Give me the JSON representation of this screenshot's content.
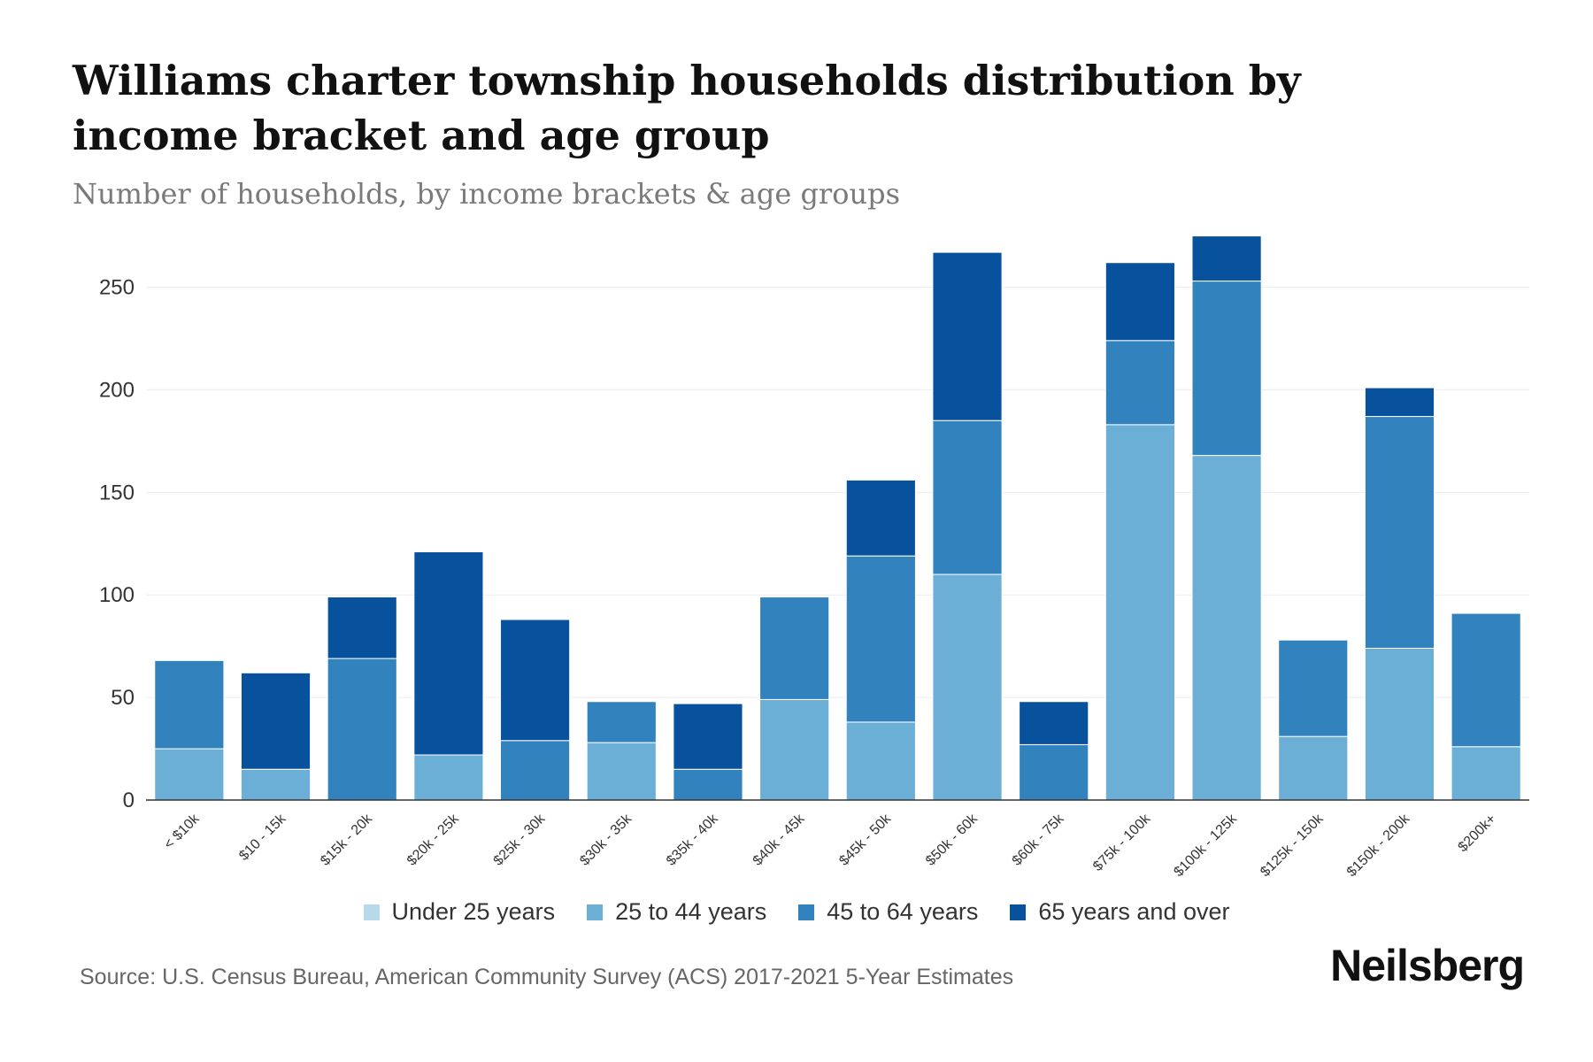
{
  "header": {
    "title": "Williams charter township households distribution by income bracket and age group",
    "subtitle": "Number of households, by income brackets & age groups"
  },
  "footer": {
    "source": "Source: U.S. Census Bureau, American Community Survey (ACS) 2017-2021 5-Year Estimates",
    "brand": "Neilsberg"
  },
  "chart_data": {
    "type": "bar",
    "stacked": true,
    "title": "Williams charter township households distribution by income bracket and age group",
    "subtitle": "Number of households, by income brackets & age groups",
    "xlabel": "",
    "ylabel": "",
    "ylim": [
      0,
      280
    ],
    "yticks": [
      0,
      50,
      100,
      150,
      200,
      250
    ],
    "grid": true,
    "legend_position": "bottom",
    "categories": [
      "< $10k",
      "$10 - 15k",
      "$15k - 20k",
      "$20k - 25k",
      "$25k - 30k",
      "$30k - 35k",
      "$35k - 40k",
      "$40k - 45k",
      "$45k - 50k",
      "$50k - 60k",
      "$60k - 75k",
      "$75k - 100k",
      "$100k - 125k",
      "$125k - 150k",
      "$150k - 200k",
      "$200k+"
    ],
    "series": [
      {
        "name": "Under 25 years",
        "color": "#b7d9ea",
        "values": [
          0,
          0,
          0,
          0,
          0,
          0,
          0,
          0,
          0,
          0,
          0,
          0,
          0,
          0,
          0,
          0
        ]
      },
      {
        "name": "25 to 44 years",
        "color": "#6baed6",
        "values": [
          25,
          15,
          0,
          22,
          0,
          28,
          0,
          49,
          38,
          110,
          0,
          183,
          168,
          31,
          74,
          26
        ]
      },
      {
        "name": "45 to 64 years",
        "color": "#3182bd",
        "values": [
          43,
          0,
          69,
          0,
          29,
          20,
          15,
          50,
          81,
          75,
          27,
          41,
          85,
          47,
          113,
          65
        ]
      },
      {
        "name": "65 years and over",
        "color": "#08519c",
        "values": [
          0,
          47,
          30,
          99,
          59,
          0,
          32,
          0,
          37,
          82,
          21,
          38,
          22,
          0,
          14,
          0
        ]
      }
    ]
  }
}
